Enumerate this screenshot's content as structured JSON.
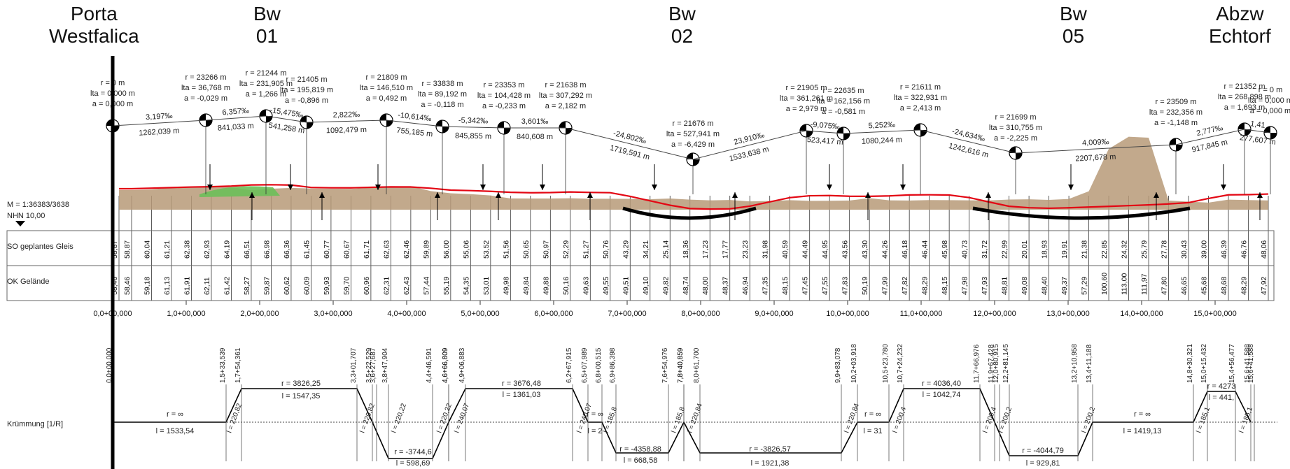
{
  "headers": {
    "start": [
      "Porta",
      "Westfalica"
    ],
    "bw01": [
      "Bw",
      "01"
    ],
    "bw02": [
      "Bw",
      "02"
    ],
    "bw05": [
      "Bw",
      "05"
    ],
    "end": [
      "Abzw",
      "Echtorf"
    ]
  },
  "scale_label": "M = 1:36383/3638",
  "nhn_label": "NHN 10,00",
  "row_labels": {
    "so": "SO geplantes Gleis",
    "ok": "OK Gelände",
    "curve": "Krümmung [1/R]"
  },
  "colors": {
    "gradient_line": "#e30613",
    "terrain": "#b79a78",
    "green_patch": "#6bbf59",
    "axis": "#000000"
  },
  "so_values": [
    "58,87",
    "58,87",
    "60,04",
    "61,21",
    "62,38",
    "62,93",
    "64,19",
    "66,51",
    "66,98",
    "66,36",
    "61,45",
    "60,77",
    "60,67",
    "61,71",
    "62,63",
    "62,46",
    "59,89",
    "56,00",
    "55,06",
    "53,52",
    "51,56",
    "50,65",
    "50,97",
    "52,29",
    "51,27",
    "50,76",
    "43,29",
    "34,21",
    "25,14",
    "18,36",
    "17,23",
    "17,77",
    "23,23",
    "31,98",
    "40,59",
    "44,49",
    "44,95",
    "43,56",
    "43,30",
    "44,26",
    "46,18",
    "46,44",
    "45,98",
    "40,73",
    "31,72",
    "22,99",
    "20,01",
    "18,93",
    "19,91",
    "21,38",
    "22,85",
    "24,32",
    "25,79",
    "27,78",
    "30,43",
    "39,00",
    "46,39",
    "46,76",
    "48,06"
  ],
  "ok_values": [
    "58,46",
    "58,46",
    "59,18",
    "61,13",
    "61,91",
    "62,11",
    "61,42",
    "58,27",
    "59,87",
    "60,62",
    "60,09",
    "59,93",
    "59,70",
    "60,96",
    "62,31",
    "62,43",
    "57,44",
    "55,19",
    "54,35",
    "53,01",
    "49,98",
    "49,84",
    "49,88",
    "50,16",
    "49,63",
    "49,55",
    "49,51",
    "49,10",
    "49,82",
    "48,74",
    "48,00",
    "48,37",
    "46,94",
    "47,35",
    "48,15",
    "47,45",
    "47,55",
    "47,83",
    "50,19",
    "47,99",
    "47,82",
    "48,29",
    "48,15",
    "47,98",
    "47,93",
    "48,81",
    "49,08",
    "48,40",
    "49,37",
    "57,29",
    "100,60",
    "113,00",
    "111,97",
    "47,80",
    "46,65",
    "45,68",
    "48,68",
    "48,29",
    "47,92"
  ],
  "chainage_labels": [
    "0,0+00,000",
    "1,0+00,000",
    "2,0+00,000",
    "3,0+00,000",
    "4,0+00,000",
    "5,0+00,000",
    "6,0+00,000",
    "7,0+00,000",
    "8,0+00,000",
    "9,0+00,000",
    "10,0+00,000",
    "11,0+00,000",
    "12,0+00,000",
    "13,0+00,000",
    "14,0+00,000",
    "15,0+00,000"
  ],
  "gradient_pvi": [
    {
      "km": 0.0,
      "r": "r = 0 m",
      "lta": "lta = 0,000 m",
      "a": "a = 0,000 m"
    },
    {
      "km": 1.262,
      "r": "r = 23266 m",
      "lta": "lta = 36,768 m",
      "a": "a = -0,029 m"
    },
    {
      "km": 2.103,
      "r": "r = 21244 m",
      "lta": "lta = 231,905 m",
      "a": "a = 1,266 m"
    },
    {
      "km": 2.644,
      "r": "r = 21405 m",
      "lta": "lta = 195,819 m",
      "a": "a = -0,896 m"
    },
    {
      "km": 3.737,
      "r": "r = 21809 m",
      "lta": "lta = 146,510 m",
      "a": "a = 0,492 m"
    },
    {
      "km": 4.492,
      "r": "r = 33838 m",
      "lta": "lta = 89,192 m",
      "a": "a = -0,118 m"
    },
    {
      "km": 5.338,
      "r": "r = 23353 m",
      "lta": "lta = 104,428 m",
      "a": "a = -0,233 m"
    },
    {
      "km": 6.178,
      "r": "r = 21638 m",
      "lta": "lta = 307,292 m",
      "a": "a = 2,182 m"
    },
    {
      "km": 7.898,
      "r": "r = 21676 m",
      "lta": "lta = 527,941 m",
      "a": "a = -6,429 m"
    },
    {
      "km": 9.432,
      "r": "r = 21905 m",
      "lta": "lta = 361,261 m",
      "a": "a = 2,979 m"
    },
    {
      "km": 9.955,
      "r": "r = 22635 m",
      "lta": "lta = 162,156 m",
      "a": "a = -0,581 m"
    },
    {
      "km": 11.035,
      "r": "r = 21611 m",
      "lta": "lta = 322,931 m",
      "a": "a = 2,413 m"
    },
    {
      "km": 12.278,
      "r": "r = 21699 m",
      "lta": "lta = 310,755 m",
      "a": "a = -2,225 m"
    },
    {
      "km": 14.486,
      "r": "r = 23509 m",
      "lta": "lta = 232,356 m",
      "a": "a = -1,148 m"
    },
    {
      "km": 15.404,
      "r": "r = 21352 m",
      "lta": "lta = 268,898 m",
      "a": "a = 1,693 m"
    },
    {
      "km": 15.7,
      "r": "r = 0 m",
      "lta": "lta = 0,000 m",
      "a": "a = 0,000 m"
    }
  ],
  "gradient_segments": [
    {
      "grade": "3,197‰",
      "len": "1262,039 m"
    },
    {
      "grade": "6,357‰",
      "len": "841,033 m"
    },
    {
      "grade": "-15,475‰",
      "len": "541,258 m"
    },
    {
      "grade": "2,822‰",
      "len": "1092,479 m"
    },
    {
      "grade": "-10,614‰",
      "len": "755,185 m"
    },
    {
      "grade": "-5,342‰",
      "len": "845,855 m"
    },
    {
      "grade": "3,601‰",
      "len": "840,608 m"
    },
    {
      "grade": "-24,802‰",
      "len": "1719,591 m"
    },
    {
      "grade": "23,910‰",
      "len": "1533,638 m"
    },
    {
      "grade": "-9,075‰",
      "len": "523,417 m"
    },
    {
      "grade": "5,252‰",
      "len": "1080,244 m"
    },
    {
      "grade": "-24,634‰",
      "len": "1242,616 m"
    },
    {
      "grade": "4,009‰",
      "len": "2207,678 m"
    },
    {
      "grade": "2,777‰",
      "len": "917,845 m"
    },
    {
      "grade": "1,41",
      "len": "277,607 m"
    }
  ],
  "station_marks": [
    "0,0+00,000",
    "1,5+33,539",
    "1,7+54,361",
    "3,3+01,707",
    "3,5+22,529",
    "3,6+27,687",
    "3,8+47,904",
    "4,4+46,591",
    "4,6+66,809",
    "4,6+66,809",
    "4,9+06,883",
    "6,2+67,915",
    "6,5+07,989",
    "6,8+00,515",
    "6,9+86,398",
    "7,6+54,976",
    "7,8+40,859",
    "7,8+40,859",
    "8,0+61,700",
    "9,9+83,078",
    "10,2+03,918",
    "10,5+23,780",
    "10,7+24,232",
    "11,7+66,976",
    "11,9+67,428",
    "12,0+80,915",
    "12,2+81,145",
    "13,2+10,958",
    "13,4+11,188",
    "14,8+30,321",
    "15,0+15,432",
    "15,4+56,477",
    "15,6+41,588",
    "15,6+41,588"
  ],
  "curvature_labels": [
    {
      "r": "r = ∞",
      "l": "l = 1533,54"
    },
    {
      "t": "l = 220,82"
    },
    {
      "r": "r = 3826,25",
      "l": "l = 1547,35"
    },
    {
      "t": "l = 220,82"
    },
    {
      "t": "l = 220,22"
    },
    {
      "r": "r = -3744,6",
      "l": "l = 598,69"
    },
    {
      "t": "l = 220,22"
    },
    {
      "t": "l = 240,07"
    },
    {
      "r": "r = 3676,48",
      "l": "l = 1361,03"
    },
    {
      "t": "l = 240,07"
    },
    {
      "r": "r = ∞",
      "l": "l = 2"
    },
    {
      "t": "l = 185,8"
    },
    {
      "r": "r = -4358,88",
      "l": "l = 668,58"
    },
    {
      "t": "l = 185,8"
    },
    {
      "t": "l = 220,84"
    },
    {
      "r": "r = -3826,57",
      "l": "l = 1921,38"
    },
    {
      "t": "l = 220,84"
    },
    {
      "r": "r = ∞",
      "l": "l = 31"
    },
    {
      "t": "l = 200,4"
    },
    {
      "r": "r = 4036,40",
      "l": "l = 1042,74"
    },
    {
      "t": "l = 200,4"
    },
    {
      "t": "l = 200,2"
    },
    {
      "r": "r = -4044,79",
      "l": "l = 929,81"
    },
    {
      "t": "l = 200,2"
    },
    {
      "r": "r = ∞",
      "l": "l = 1419,13"
    },
    {
      "t": "l = 185,1"
    },
    {
      "r": "r = 4273",
      "l": "l = 441,"
    },
    {
      "t": "l = 185,1"
    }
  ]
}
